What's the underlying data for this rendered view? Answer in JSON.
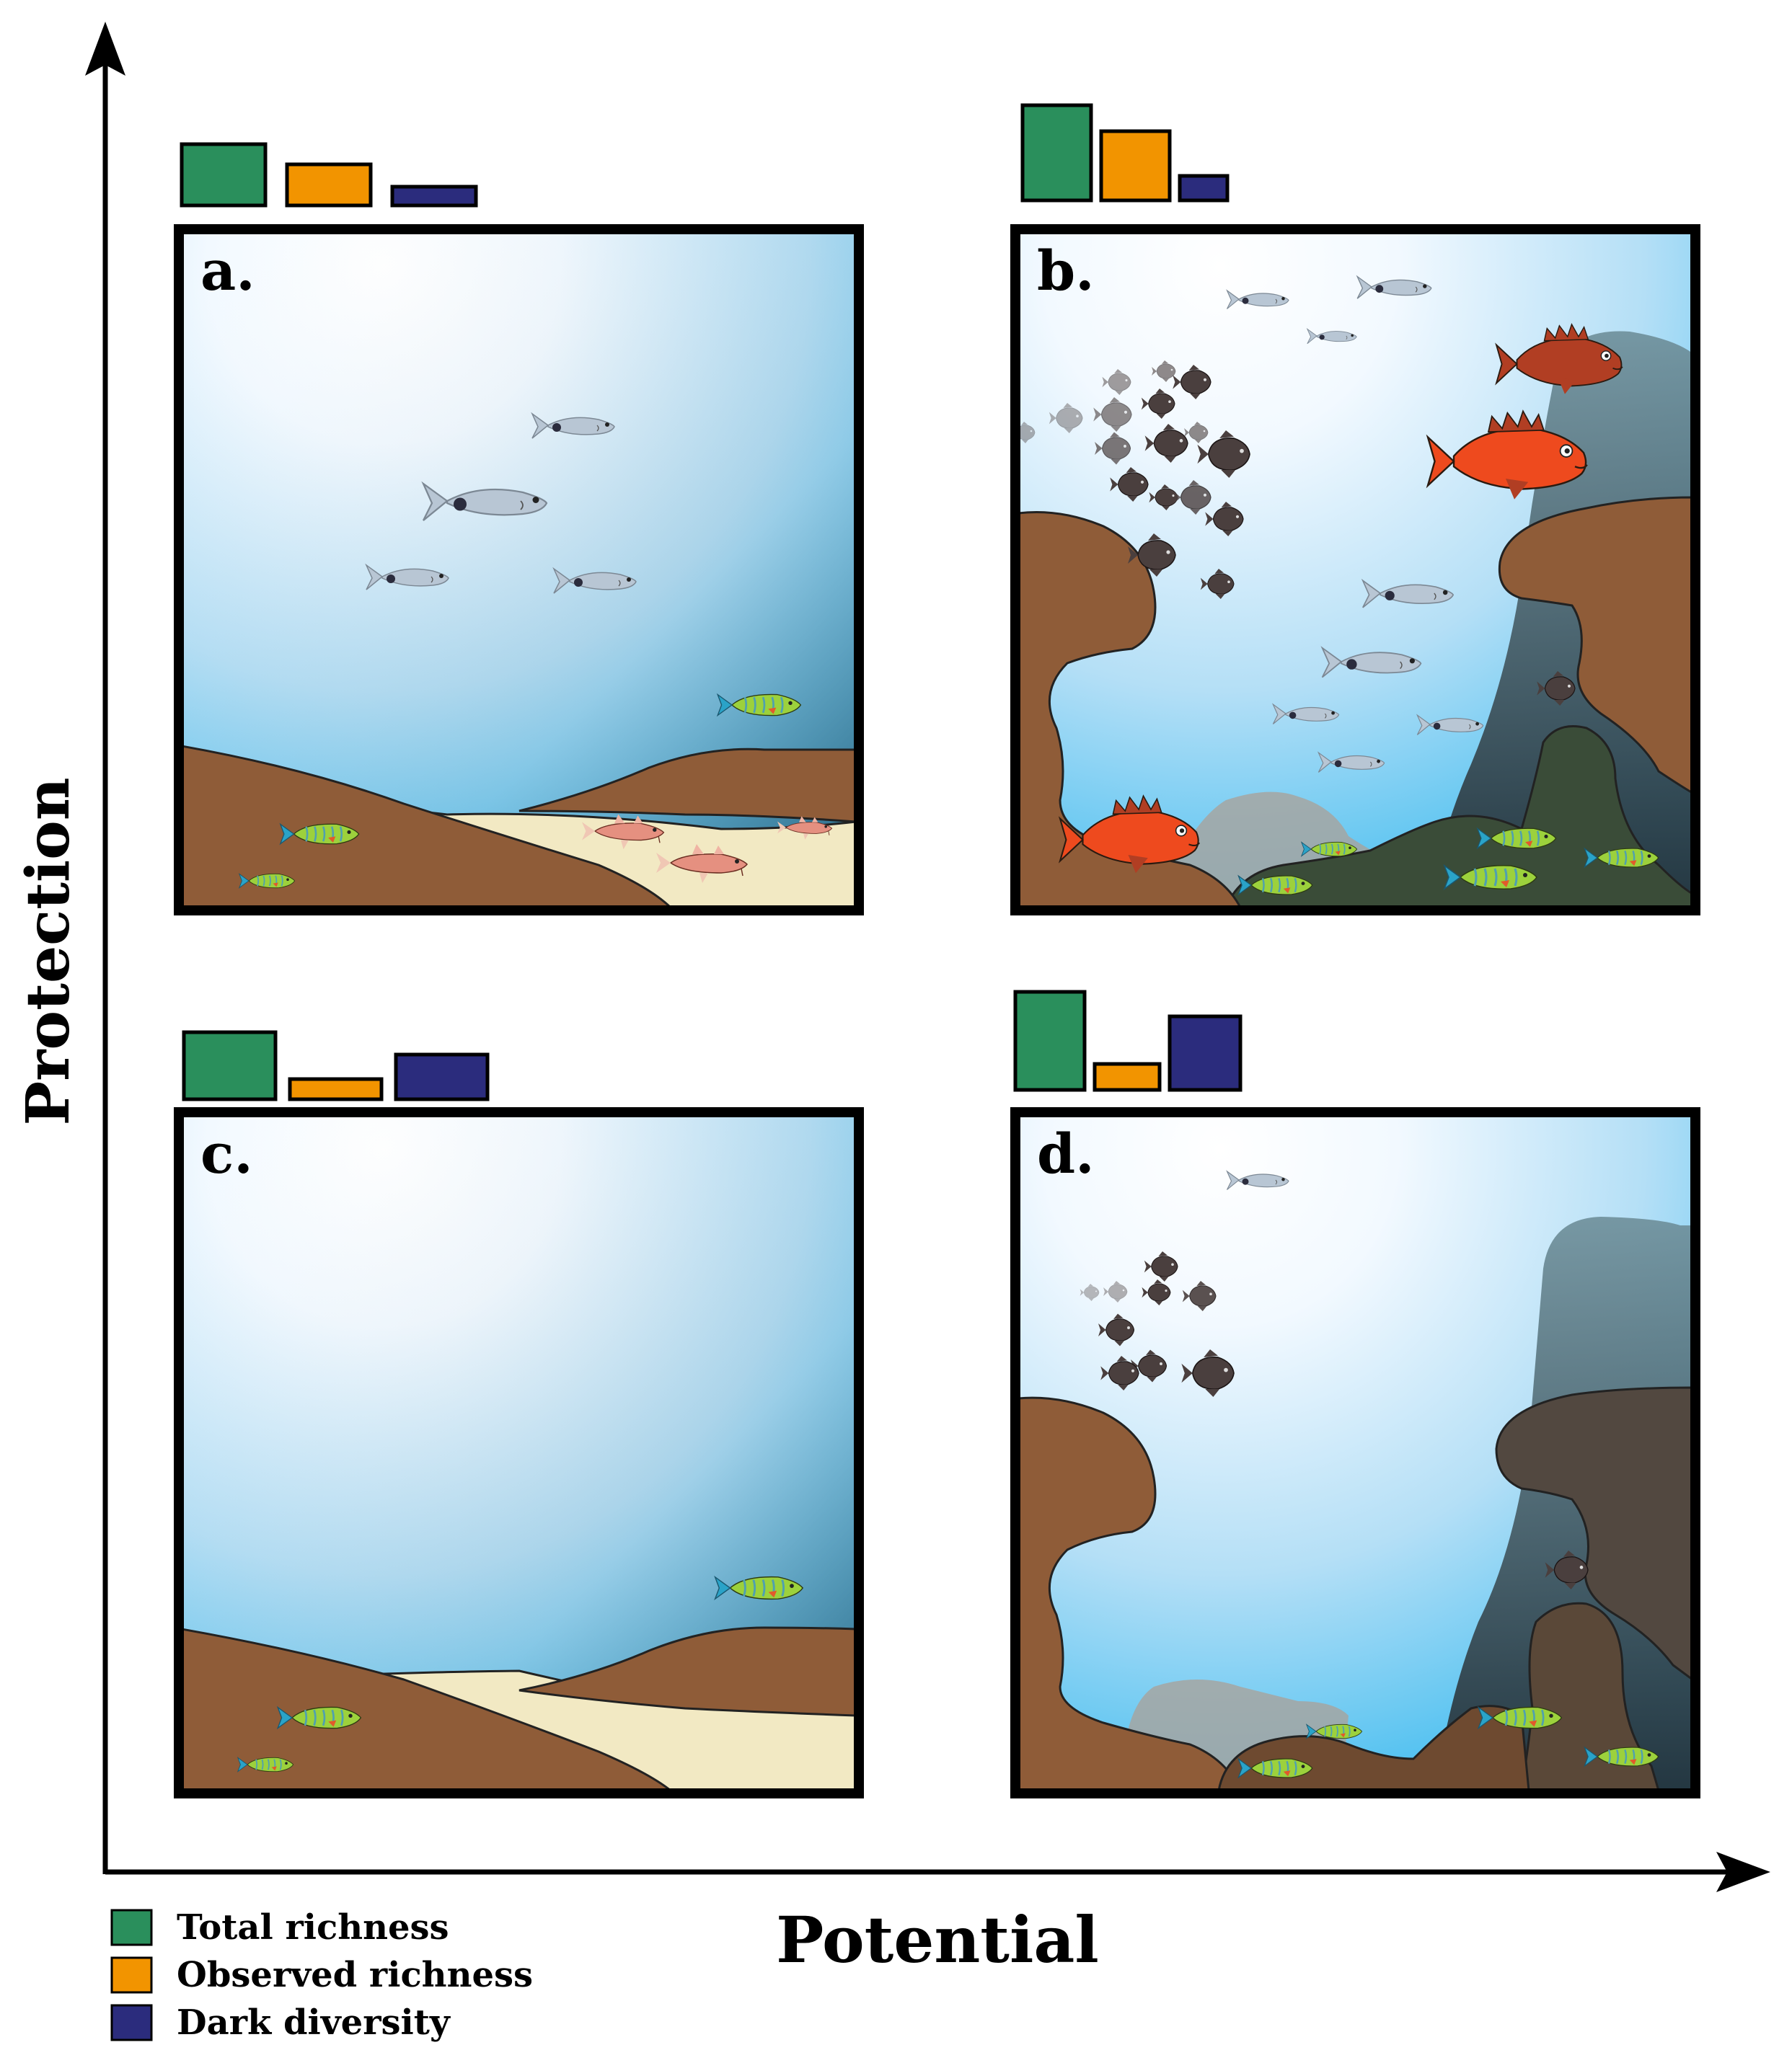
{
  "axes": {
    "x_label": "Potential",
    "y_label": "Protection"
  },
  "legend": [
    {
      "label": "Total richness",
      "color": "#2a8f5c"
    },
    {
      "label": "Observed richness",
      "color": "#f29400"
    },
    {
      "label": "Dark diversity",
      "color": "#2b2c7d"
    }
  ],
  "panels": [
    {
      "id": "a",
      "label": "a.",
      "bars": {
        "total": 0.55,
        "observed": 0.37,
        "dark": 0.17
      },
      "quadrant": "high protection, low potential"
    },
    {
      "id": "b",
      "label": "b.",
      "bars": {
        "total": 0.85,
        "observed": 0.62,
        "dark": 0.22
      },
      "quadrant": "high protection, high potential"
    },
    {
      "id": "c",
      "label": "c.",
      "bars": {
        "total": 0.6,
        "observed": 0.18,
        "dark": 0.4
      },
      "quadrant": "low protection, low potential"
    },
    {
      "id": "d",
      "label": "d.",
      "bars": {
        "total": 0.88,
        "observed": 0.23,
        "dark": 0.66
      },
      "quadrant": "low protection, high potential"
    }
  ],
  "colors": {
    "water_top": "#ffffff",
    "water_edge": "#3bbbee",
    "reef": "#8f5c38",
    "sand": "#f2e9c3",
    "rock_grey": "#6f8e98",
    "algae": "#3a4c38",
    "silver_fish": "#b8c6d4",
    "damselfish": "#4a3f3e",
    "grouper": "#ee4a1e",
    "grouper_dark": "#b13e23",
    "goatfish": "#e59080",
    "wrasse": "#9cd13c"
  }
}
